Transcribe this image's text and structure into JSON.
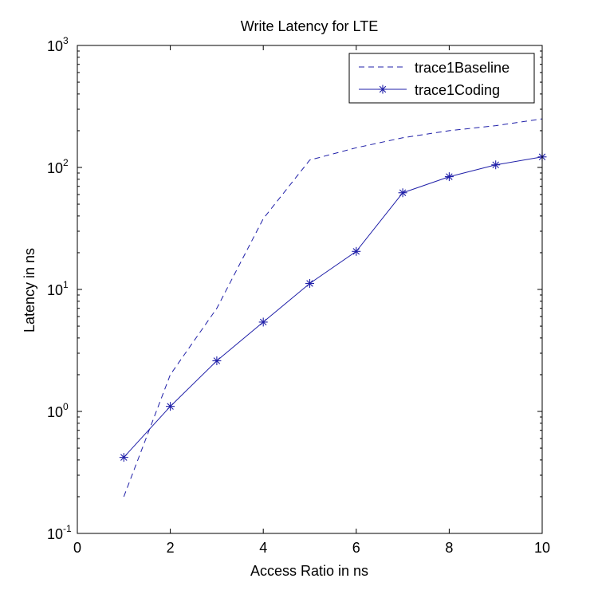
{
  "chart_data": {
    "type": "line",
    "title": "Write Latency for LTE",
    "xlabel": "Access Ratio in ns",
    "ylabel": "Latency in ns",
    "xlim": [
      0,
      10
    ],
    "ylim": [
      0.1,
      1000
    ],
    "yscale": "log",
    "grid": false,
    "legend_position": "top-right",
    "x_ticks": [
      "0",
      "2",
      "4",
      "6",
      "8",
      "10"
    ],
    "y_ticks": [
      {
        "base": "10",
        "exp": "-1"
      },
      {
        "base": "10",
        "exp": "0"
      },
      {
        "base": "10",
        "exp": "1"
      },
      {
        "base": "10",
        "exp": "2"
      },
      {
        "base": "10",
        "exp": "3"
      }
    ],
    "series": [
      {
        "name": "trace1Baseline",
        "color": "#1f1fa8",
        "line_style": "dashed",
        "marker": "none",
        "x": [
          1,
          2,
          3,
          4,
          5,
          6,
          7,
          8,
          9,
          10
        ],
        "y": [
          0.2,
          2.0,
          7.0,
          38,
          115,
          145,
          175,
          200,
          220,
          250
        ]
      },
      {
        "name": "trace1Coding",
        "color": "#1f1fa8",
        "line_style": "solid",
        "marker": "asterisk",
        "x": [
          1,
          2,
          3,
          4,
          5,
          6,
          7,
          8,
          9,
          10
        ],
        "y": [
          0.42,
          1.1,
          2.6,
          5.4,
          11.2,
          20.5,
          62,
          84,
          105,
          122
        ]
      }
    ]
  }
}
